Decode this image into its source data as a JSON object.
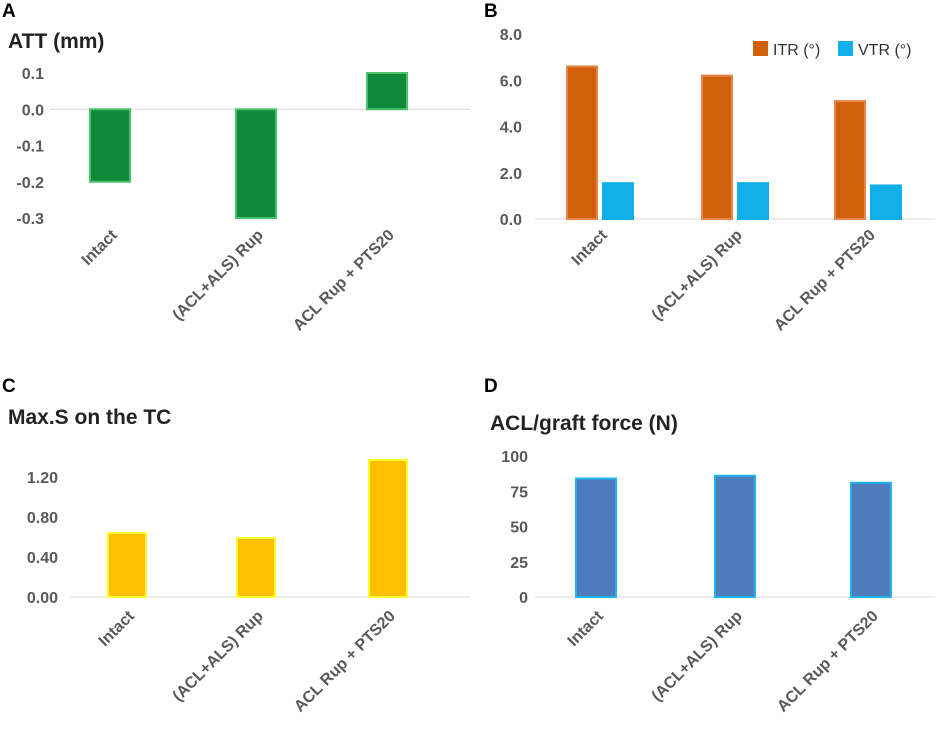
{
  "chart_data": [
    {
      "panel": "A",
      "type": "bar",
      "title": "ATT (mm)",
      "categories": [
        "Intact",
        "(ACL+ALS) Rup",
        "ACL Rup + PTS20"
      ],
      "series": [
        {
          "name": "ATT (mm)",
          "values": [
            -0.2,
            -0.3,
            0.1
          ],
          "color": "#0e8a3a",
          "edge": "#4cc36a"
        }
      ],
      "ylim": [
        -0.3,
        0.1
      ],
      "yticks": [
        0.1,
        0.0,
        -0.1,
        -0.2,
        -0.3
      ],
      "ytick_labels": [
        "0.1",
        "0.0",
        "-0.1",
        "-0.2",
        "-0.3"
      ],
      "legend": false
    },
    {
      "panel": "B",
      "type": "bar",
      "title": "",
      "categories": [
        "Intact",
        "(ACL+ALS) Rup",
        "ACL Rup + PTS20"
      ],
      "series": [
        {
          "name": "ITR (°)",
          "values": [
            6.6,
            6.2,
            5.1
          ],
          "color": "#d15f0c",
          "edge": "#e8864a"
        },
        {
          "name": "VTR (°)",
          "values": [
            1.55,
            1.55,
            1.45
          ],
          "color": "#12b0ea",
          "edge": "#12b0ea"
        }
      ],
      "ylim": [
        0,
        8
      ],
      "yticks": [
        0,
        2,
        4,
        6,
        8
      ],
      "ytick_labels": [
        "0.0",
        "2.0",
        "4.0",
        "6.0",
        "8.0"
      ],
      "legend": true,
      "legend_position": "top-right"
    },
    {
      "panel": "C",
      "type": "bar",
      "title": "Max.S on the TC",
      "categories": [
        "Intact",
        "(ACL+ALS) Rup",
        "ACL Rup + PTS20"
      ],
      "series": [
        {
          "name": "Max.S on the TC",
          "values": [
            0.64,
            0.59,
            1.37
          ],
          "color": "#fec000",
          "edge": "#ffff33"
        }
      ],
      "ylim": [
        0,
        1.3
      ],
      "yticks": [
        0,
        0.4,
        0.8,
        1.2
      ],
      "ytick_labels": [
        "0.00",
        "0.40",
        "0.80",
        "1.20"
      ],
      "legend": false
    },
    {
      "panel": "D",
      "type": "bar",
      "title": "ACL/graft force (N)",
      "categories": [
        "Intact",
        "(ACL+ALS) Rup",
        "ACL Rup + PTS20"
      ],
      "series": [
        {
          "name": "ACL/graft force (N)",
          "values": [
            84,
            86,
            81
          ],
          "color": "#4e7cbd",
          "edge": "#1fb3ec"
        }
      ],
      "ylim": [
        0,
        100
      ],
      "yticks": [
        0,
        25,
        50,
        75,
        100
      ],
      "ytick_labels": [
        "0",
        "25",
        "50",
        "75",
        "100"
      ],
      "legend": false
    }
  ]
}
